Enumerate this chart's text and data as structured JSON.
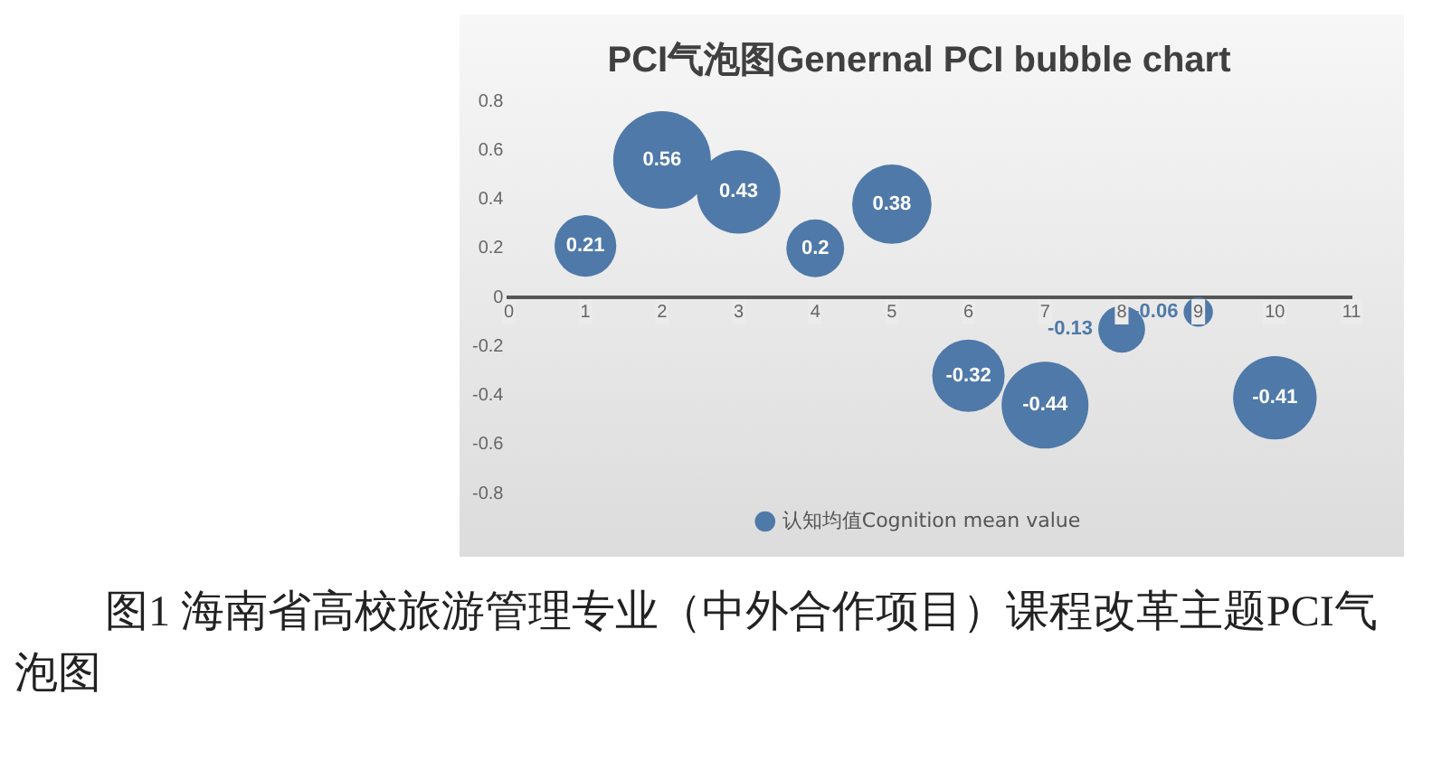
{
  "chart_data": {
    "type": "bubble",
    "title": "PCI气泡图Genernal PCI bubble chart",
    "x": [
      1,
      2,
      3,
      4,
      5,
      6,
      7,
      8,
      9,
      10
    ],
    "series": [
      {
        "name": "认知均值Cognition mean value",
        "color": "#4f79a8",
        "values": [
          0.21,
          0.56,
          0.43,
          0.2,
          0.38,
          -0.32,
          -0.44,
          -0.13,
          -0.06,
          -0.41
        ],
        "sizes": [
          0.4,
          1,
          0.73,
          0.35,
          0.66,
          0.55,
          0.79,
          0.23,
          0.09,
          0.73
        ]
      }
    ],
    "xlim": [
      0,
      11
    ],
    "xticks": [
      0,
      1,
      2,
      3,
      4,
      5,
      6,
      7,
      8,
      9,
      10,
      11
    ],
    "ylim": [
      -0.8,
      0.8
    ],
    "yticks": [
      -0.8,
      -0.6,
      -0.4,
      -0.2,
      0,
      0.2,
      0.4,
      0.6,
      0.8
    ],
    "grid": false,
    "legend": "bottom",
    "data_labels": true,
    "annotations": [
      "图1  海南省高校旅游管理专业（中外合作项目）课程改革主题PCI气泡图"
    ]
  }
}
